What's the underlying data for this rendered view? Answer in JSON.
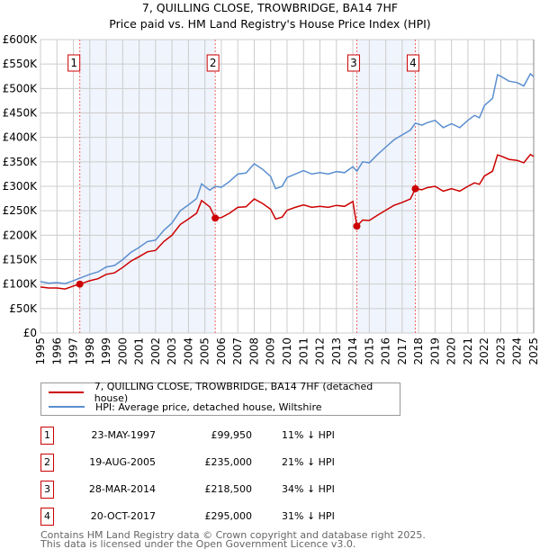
{
  "chart_data": {
    "type": "line",
    "title": "7, QUILLING CLOSE, TROWBRIDGE, BA14 7HF",
    "subtitle": "Price paid vs. HM Land Registry's House Price Index (HPI)",
    "xlim": [
      1995,
      2025
    ],
    "ylim": [
      0,
      600000
    ],
    "y_ticks": [
      {
        "v": 0,
        "label": "£0"
      },
      {
        "v": 50000,
        "label": "£50K"
      },
      {
        "v": 100000,
        "label": "£100K"
      },
      {
        "v": 150000,
        "label": "£150K"
      },
      {
        "v": 200000,
        "label": "£200K"
      },
      {
        "v": 250000,
        "label": "£250K"
      },
      {
        "v": 300000,
        "label": "£300K"
      },
      {
        "v": 350000,
        "label": "£350K"
      },
      {
        "v": 400000,
        "label": "£400K"
      },
      {
        "v": 450000,
        "label": "£450K"
      },
      {
        "v": 500000,
        "label": "£500K"
      },
      {
        "v": 550000,
        "label": "£550K"
      },
      {
        "v": 600000,
        "label": "£600K"
      }
    ],
    "x_ticks": [
      "1995",
      "1996",
      "1997",
      "1998",
      "1999",
      "2000",
      "2001",
      "2002",
      "2003",
      "2004",
      "2005",
      "2006",
      "2007",
      "2008",
      "2009",
      "2010",
      "2011",
      "2012",
      "2013",
      "2014",
      "2015",
      "2016",
      "2017",
      "2018",
      "2019",
      "2020",
      "2021",
      "2022",
      "2023",
      "2024",
      "2025"
    ],
    "grid": true,
    "x": [
      1995.0,
      1995.5,
      1996.0,
      1996.5,
      1997.0,
      1997.39,
      1998.0,
      1998.5,
      1999.0,
      1999.5,
      2000.0,
      2000.5,
      2001.0,
      2001.5,
      2002.0,
      2002.5,
      2003.0,
      2003.5,
      2004.0,
      2004.5,
      2004.8,
      2005.3,
      2005.63,
      2006.0,
      2006.5,
      2007.0,
      2007.5,
      2008.0,
      2008.5,
      2009.0,
      2009.3,
      2009.7,
      2010.0,
      2010.5,
      2011.0,
      2011.5,
      2012.0,
      2012.5,
      2013.0,
      2013.5,
      2014.0,
      2014.24,
      2014.6,
      2015.0,
      2015.5,
      2016.0,
      2016.5,
      2017.0,
      2017.5,
      2017.8,
      2018.2,
      2018.5,
      2019.0,
      2019.5,
      2020.0,
      2020.5,
      2021.0,
      2021.4,
      2021.7,
      2022.0,
      2022.5,
      2022.8,
      2023.0,
      2023.5,
      2024.0,
      2024.4,
      2024.8,
      2025.0
    ],
    "series": [
      {
        "name": "7, QUILLING CLOSE, TROWBRIDGE, BA14 7HF (detached house)",
        "color": "#cc0000",
        "values": [
          94,
          92,
          92,
          90,
          96,
          99.95,
          107,
          111,
          120,
          123,
          134,
          147,
          156,
          166,
          169,
          187,
          200,
          222,
          233,
          245,
          271,
          258,
          235,
          236,
          245,
          257,
          258,
          274,
          265,
          253,
          233,
          237,
          251,
          257,
          262,
          257,
          259,
          257,
          261,
          259,
          269,
          218.5,
          231,
          230,
          241,
          251,
          261,
          267,
          274,
          295,
          293,
          297,
          300,
          290,
          295,
          290,
          300,
          307,
          304,
          321,
          331,
          364,
          362,
          355,
          353,
          348,
          365,
          361
        ]
      },
      {
        "name": "HPI: Average price, detached house, Wiltshire",
        "color": "#5b8fd0",
        "values": [
          105,
          102,
          103,
          101,
          107,
          112,
          120,
          125,
          135,
          138,
          150,
          165,
          175,
          187,
          190,
          210,
          225,
          250,
          262,
          275,
          305,
          292,
          300,
          298,
          310,
          325,
          327,
          346,
          335,
          320,
          295,
          300,
          318,
          325,
          332,
          325,
          328,
          325,
          330,
          328,
          340,
          331,
          350,
          348,
          365,
          380,
          395,
          405,
          415,
          429,
          425,
          430,
          435,
          420,
          428,
          420,
          435,
          445,
          440,
          465,
          480,
          528,
          525,
          515,
          512,
          505,
          530,
          524
        ]
      }
    ],
    "value_unit": "thousands GBP",
    "sales": [
      {
        "id": "1",
        "x": 1997.39,
        "price": 99.95,
        "date": "23-MAY-1997",
        "price_label": "£99,950",
        "hpi_label": "11% ↓ HPI"
      },
      {
        "id": "2",
        "x": 2005.63,
        "price": 235,
        "date": "19-AUG-2005",
        "price_label": "£235,000",
        "hpi_label": "21% ↓ HPI"
      },
      {
        "id": "3",
        "x": 2014.24,
        "price": 218.5,
        "date": "28-MAR-2014",
        "price_label": "£218,500",
        "hpi_label": "34% ↓ HPI"
      },
      {
        "id": "4",
        "x": 2017.8,
        "price": 295,
        "date": "20-OCT-2017",
        "price_label": "£295,000",
        "hpi_label": "31% ↓ HPI"
      }
    ],
    "shaded_ranges": [
      [
        1997.39,
        2005.63
      ],
      [
        2014.24,
        2017.8
      ]
    ],
    "legend_placement": "below"
  },
  "footer": {
    "line1": "Contains HM Land Registry data © Crown copyright and database right 2025.",
    "line2": "This data is licensed under the Open Government Licence v3.0."
  }
}
